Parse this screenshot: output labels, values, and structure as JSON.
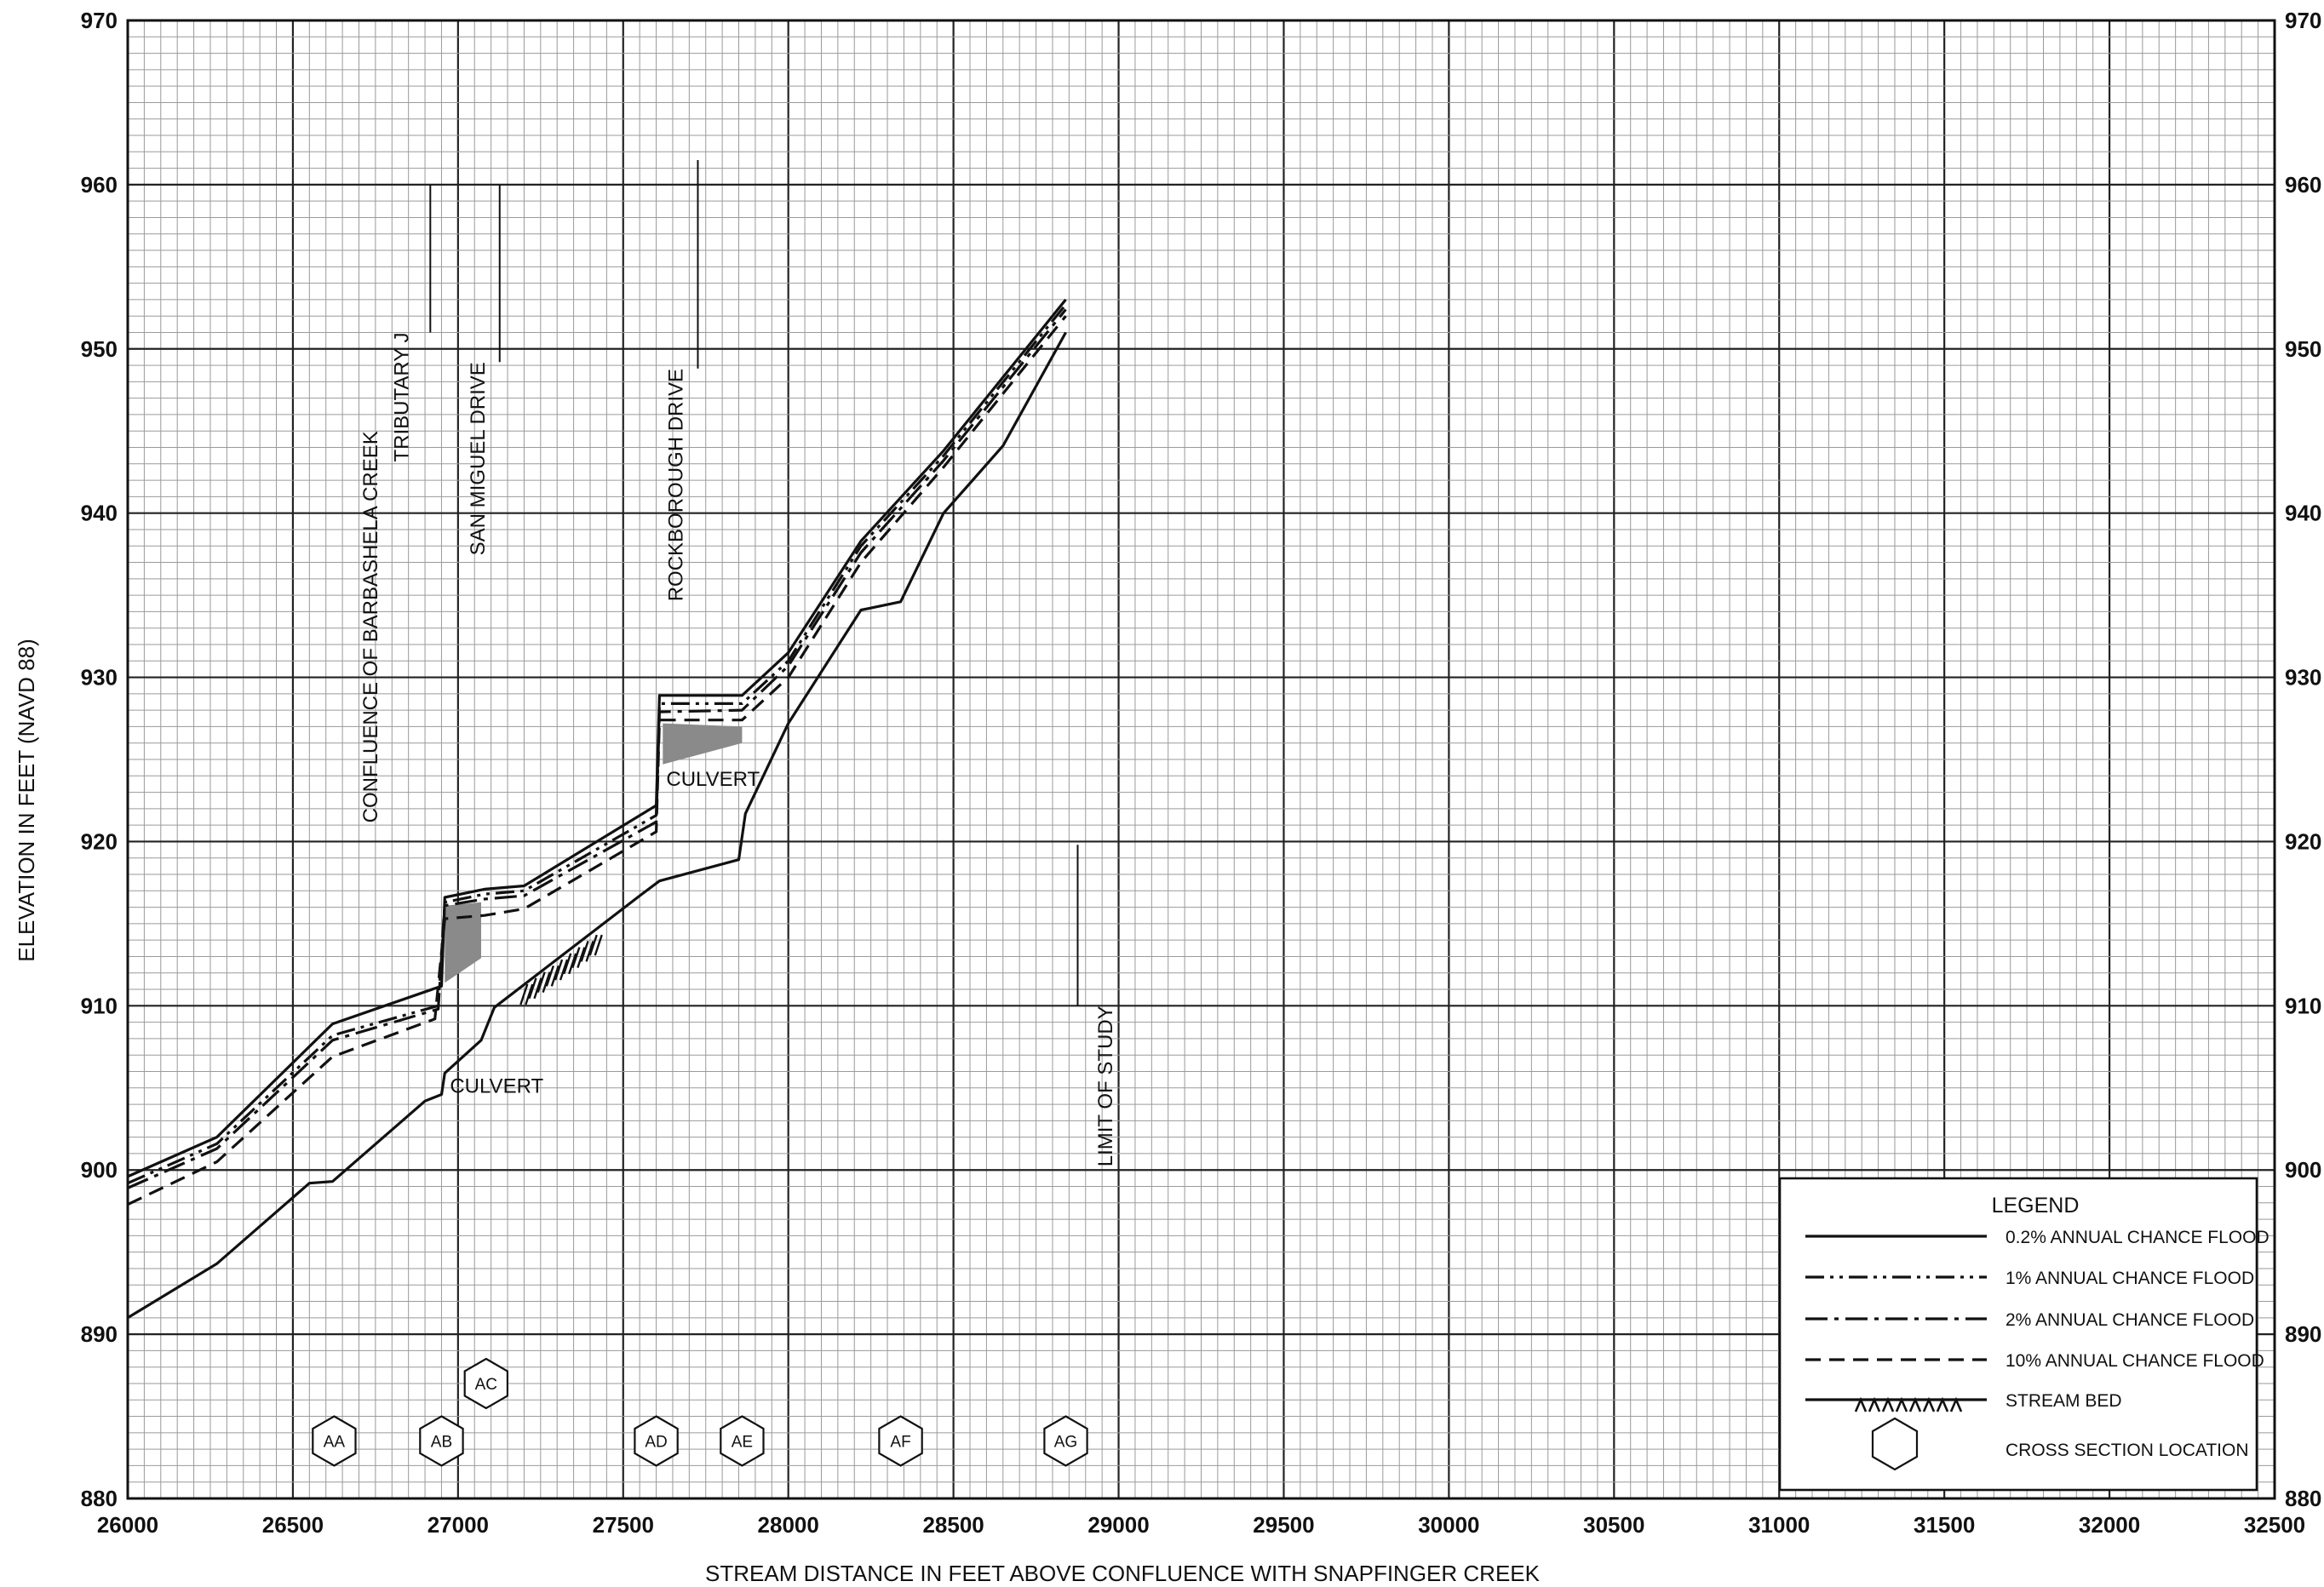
{
  "chart_data": {
    "type": "line",
    "title": "",
    "xlabel": "STREAM DISTANCE IN FEET ABOVE CONFLUENCE WITH SNAPFINGER CREEK",
    "ylabel": "ELEVATION IN FEET (NAVD 88)",
    "xlim": [
      26000,
      32500
    ],
    "ylim": [
      880,
      970
    ],
    "x_ticks": [
      26000,
      26500,
      27000,
      27500,
      28000,
      28500,
      29000,
      29500,
      30000,
      30500,
      31000,
      31500,
      32000,
      32500
    ],
    "y_ticks": [
      880,
      890,
      900,
      910,
      920,
      930,
      940,
      950,
      960,
      970
    ],
    "x_tick_labels": [
      "26000",
      "26500",
      "27000",
      "27500",
      "28000",
      "28500",
      "29000",
      "29500",
      "30000",
      "30500",
      "31000",
      "31500",
      "32000",
      "32500"
    ],
    "y_tick_labels": [
      "880",
      "890",
      "900",
      "910",
      "920",
      "930",
      "940",
      "950",
      "960",
      "970"
    ],
    "grid": true,
    "series": [
      {
        "name": "0.2% ANNUAL CHANCE FLOOD",
        "style": "solid",
        "points": [
          [
            26000,
            899.6
          ],
          [
            26270,
            902.0
          ],
          [
            26620,
            908.9
          ],
          [
            26950,
            911.2
          ],
          [
            26960,
            916.6
          ],
          [
            27080,
            917.1
          ],
          [
            27200,
            917.3
          ],
          [
            27600,
            922.2
          ],
          [
            27610,
            928.9
          ],
          [
            27860,
            928.9
          ],
          [
            28000,
            931.5
          ],
          [
            28220,
            938.3
          ],
          [
            28470,
            943.8
          ],
          [
            28840,
            953.0
          ]
        ]
      },
      {
        "name": "1% ANNUAL CHANCE FLOOD",
        "style": "dash-dot-dot",
        "points": [
          [
            26000,
            899.2
          ],
          [
            26270,
            901.6
          ],
          [
            26620,
            908.2
          ],
          [
            26940,
            910.0
          ],
          [
            26960,
            916.3
          ],
          [
            27080,
            916.8
          ],
          [
            27200,
            917.0
          ],
          [
            27600,
            921.6
          ],
          [
            27610,
            928.4
          ],
          [
            27860,
            928.4
          ],
          [
            28000,
            931.0
          ],
          [
            28220,
            938.0
          ],
          [
            28470,
            943.5
          ],
          [
            28840,
            952.7
          ]
        ]
      },
      {
        "name": "2% ANNUAL CHANCE FLOOD",
        "style": "dash-dot",
        "points": [
          [
            26000,
            898.9
          ],
          [
            26270,
            901.3
          ],
          [
            26620,
            907.9
          ],
          [
            26940,
            909.8
          ],
          [
            26960,
            916.1
          ],
          [
            27080,
            916.5
          ],
          [
            27200,
            916.7
          ],
          [
            27600,
            921.2
          ],
          [
            27610,
            927.9
          ],
          [
            27860,
            928.0
          ],
          [
            28000,
            930.7
          ],
          [
            28220,
            937.6
          ],
          [
            28470,
            943.2
          ],
          [
            28840,
            952.4
          ]
        ]
      },
      {
        "name": "10% ANNUAL CHANCE FLOOD",
        "style": "dashed",
        "points": [
          [
            26000,
            897.9
          ],
          [
            26270,
            900.5
          ],
          [
            26620,
            906.9
          ],
          [
            26930,
            909.2
          ],
          [
            26960,
            915.3
          ],
          [
            27080,
            915.5
          ],
          [
            27200,
            915.9
          ],
          [
            27600,
            920.6
          ],
          [
            27610,
            927.4
          ],
          [
            27860,
            927.4
          ],
          [
            28000,
            930.0
          ],
          [
            28220,
            937.0
          ],
          [
            28470,
            942.8
          ],
          [
            28840,
            952.0
          ]
        ]
      },
      {
        "name": "STREAM BED",
        "style": "bed",
        "points": [
          [
            26000,
            891.0
          ],
          [
            26270,
            894.3
          ],
          [
            26550,
            899.2
          ],
          [
            26620,
            899.3
          ],
          [
            26900,
            904.2
          ],
          [
            26950,
            904.6
          ],
          [
            26960,
            905.9
          ],
          [
            27070,
            907.9
          ],
          [
            27110,
            909.9
          ],
          [
            27550,
            916.7
          ],
          [
            27610,
            917.6
          ],
          [
            27850,
            918.9
          ],
          [
            27870,
            921.7
          ],
          [
            28000,
            927.2
          ],
          [
            28220,
            934.1
          ],
          [
            28340,
            934.6
          ],
          [
            28470,
            940.0
          ],
          [
            28650,
            944.1
          ],
          [
            28840,
            951.0
          ]
        ]
      }
    ],
    "culverts": [
      {
        "label": "CULVERT",
        "polygon": [
          [
            26960,
            916.1
          ],
          [
            27070,
            916.3
          ],
          [
            27070,
            912.9
          ],
          [
            26960,
            911.4
          ]
        ],
        "label_at": [
          26960,
          904.7
        ]
      },
      {
        "label": "CULVERT",
        "polygon": [
          [
            27620,
            927.2
          ],
          [
            27860,
            927.0
          ],
          [
            27860,
            926.0
          ],
          [
            27620,
            924.7
          ]
        ],
        "label_at": [
          27615,
          923.4
        ]
      }
    ],
    "streambed_hatch": {
      "from": [
        27210,
        911.0
      ],
      "to": [
        27420,
        914.0
      ]
    },
    "annotations": [
      {
        "text": "CONFLUENCE OF BARBASHELA CREEK",
        "x": 26755,
        "y_top": 964.2,
        "y_bottom": 945.0,
        "vertical": true
      },
      {
        "text": "TRIBUTARY J",
        "x": 26850,
        "y_top": 960.0,
        "y_bottom": 951.0,
        "vertical": true,
        "leader_x": 26880
      },
      {
        "text": "SAN MIGUEL DRIVE",
        "x": 27080,
        "y_top": 960.0,
        "y_bottom": 949.2,
        "vertical": true,
        "leader_x": 27090
      },
      {
        "text": "ROCKBOROUGH DRIVE",
        "x": 27680,
        "y_top": 961.5,
        "y_bottom": 948.8,
        "vertical": true,
        "leader_x": 27690
      },
      {
        "text": "LIMIT OF STUDY",
        "x": 28980,
        "y_top": 919.8,
        "y_bottom": 910.0,
        "vertical": true,
        "leader_x": 28840
      }
    ],
    "cross_sections": [
      {
        "label": "AA",
        "x": 26625,
        "y": 883.5
      },
      {
        "label": "AB",
        "x": 26950,
        "y": 883.5
      },
      {
        "label": "AC",
        "x": 27085,
        "y": 887.0
      },
      {
        "label": "AD",
        "x": 27600,
        "y": 883.5
      },
      {
        "label": "AE",
        "x": 27860,
        "y": 883.5
      },
      {
        "label": "AF",
        "x": 28340,
        "y": 883.5
      },
      {
        "label": "AG",
        "x": 28840,
        "y": 883.5
      }
    ],
    "legend": {
      "title": "LEGEND",
      "placement": "bottom-right",
      "entries": [
        {
          "label": "0.2% ANNUAL CHANCE FLOOD",
          "style": "solid"
        },
        {
          "label": "1% ANNUAL CHANCE FLOOD",
          "style": "dash-dot-dot"
        },
        {
          "label": "2% ANNUAL CHANCE FLOOD",
          "style": "dash-dot"
        },
        {
          "label": "10% ANNUAL CHANCE FLOOD",
          "style": "dashed"
        },
        {
          "label": "STREAM BED",
          "style": "bed"
        },
        {
          "label": "CROSS SECTION LOCATION",
          "style": "hexagon"
        }
      ]
    },
    "colors": {
      "line": "#111111",
      "grid_minor": "#9a9a9a",
      "grid_major": "#222222",
      "culvert": "#8a8a8a"
    }
  }
}
